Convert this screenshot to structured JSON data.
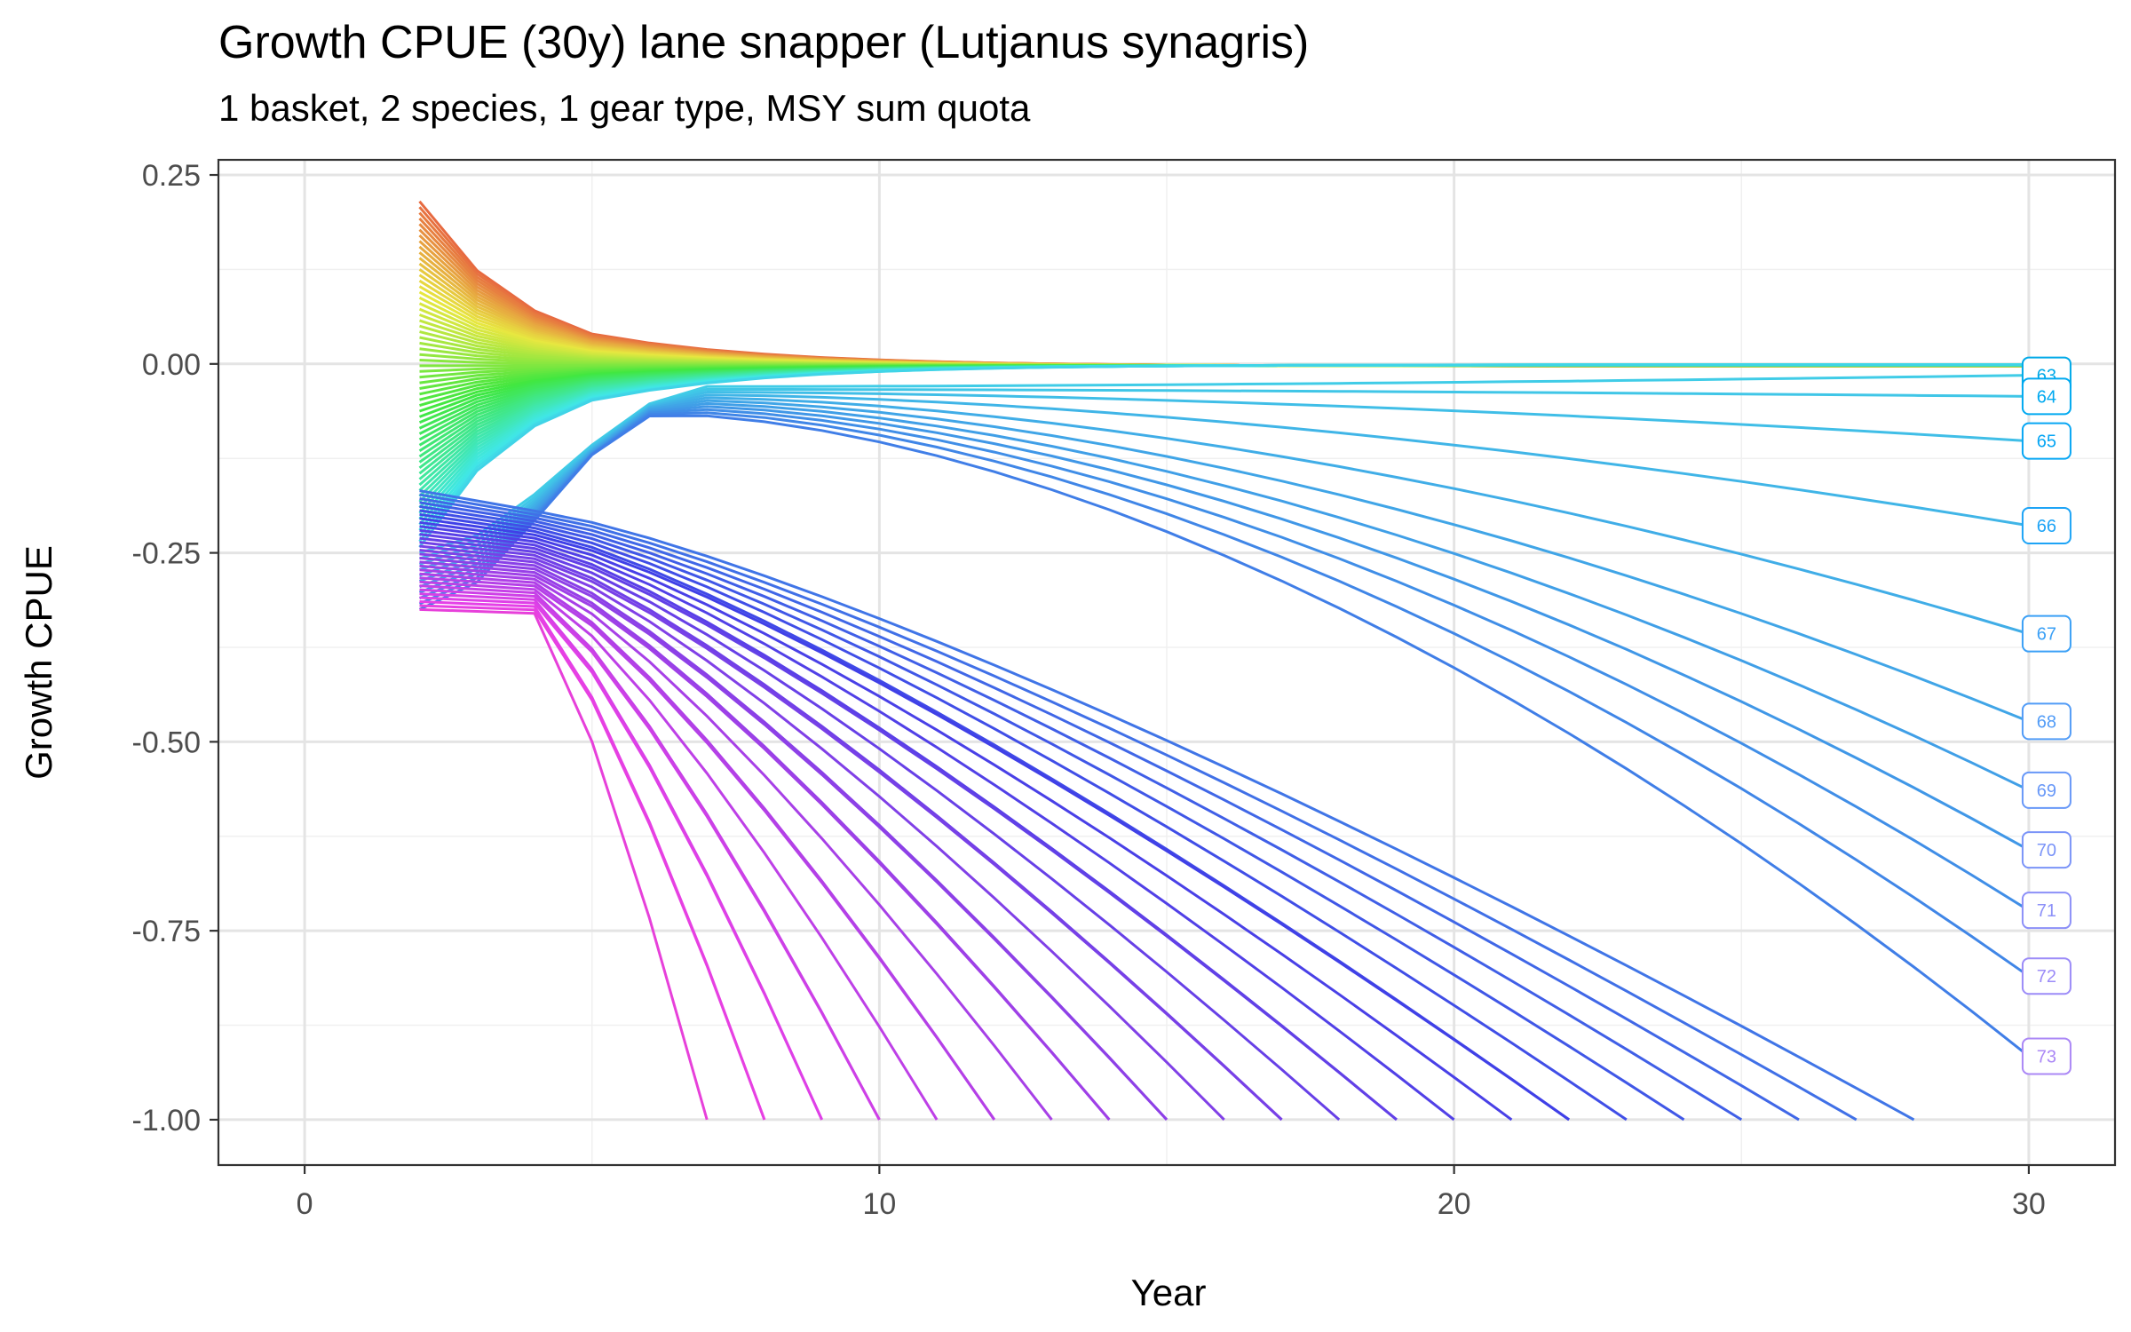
{
  "chart_data": {
    "type": "line",
    "title": "Growth CPUE (30y) lane snapper (Lutjanus synagris)",
    "subtitle": "1 basket, 2 species, 1 gear type, MSY sum quota",
    "xlabel": "Year",
    "ylabel": "Growth CPUE",
    "xlim": [
      -1.5,
      31.5
    ],
    "ylim": [
      -1.06,
      0.27
    ],
    "x_ticks": [
      0,
      10,
      20,
      30
    ],
    "x_tick_labels": [
      "0",
      "10",
      "20",
      "30"
    ],
    "y_ticks": [
      0.25,
      0.0,
      -0.25,
      -0.5,
      -0.75,
      -1.0
    ],
    "y_tick_labels": [
      "0.25",
      "0.00",
      "-0.25",
      "-0.50",
      "-0.75",
      "-1.00"
    ],
    "grid": true,
    "legend": "none",
    "series_color_scale": "hue gradient from orange-red (lowest series) through green and blue to magenta (highest series)",
    "series_count": 73,
    "series_start_year": 2,
    "series_start_range": [
      0.215,
      -0.325
    ],
    "series_end_year_max": 30,
    "end_labels": [
      {
        "label": "63",
        "value": -0.015,
        "color": "#00a9e8"
      },
      {
        "label": "64",
        "value": -0.043,
        "color": "#00a9f0"
      },
      {
        "label": "65",
        "value": -0.102,
        "color": "#07a6f4"
      },
      {
        "label": "66",
        "value": -0.214,
        "color": "#1ea4f6"
      },
      {
        "label": "67",
        "value": -0.357,
        "color": "#3ba0f6"
      },
      {
        "label": "68",
        "value": -0.473,
        "color": "#529cf7"
      },
      {
        "label": "69",
        "value": -0.564,
        "color": "#6898f8"
      },
      {
        "label": "70",
        "value": -0.643,
        "color": "#7b94f8"
      },
      {
        "label": "71",
        "value": -0.723,
        "color": "#8c90f8"
      },
      {
        "label": "72",
        "value": -0.81,
        "color": "#9c8cf8"
      },
      {
        "label": "73",
        "value": -0.916,
        "color": "#ab88f6"
      }
    ]
  }
}
